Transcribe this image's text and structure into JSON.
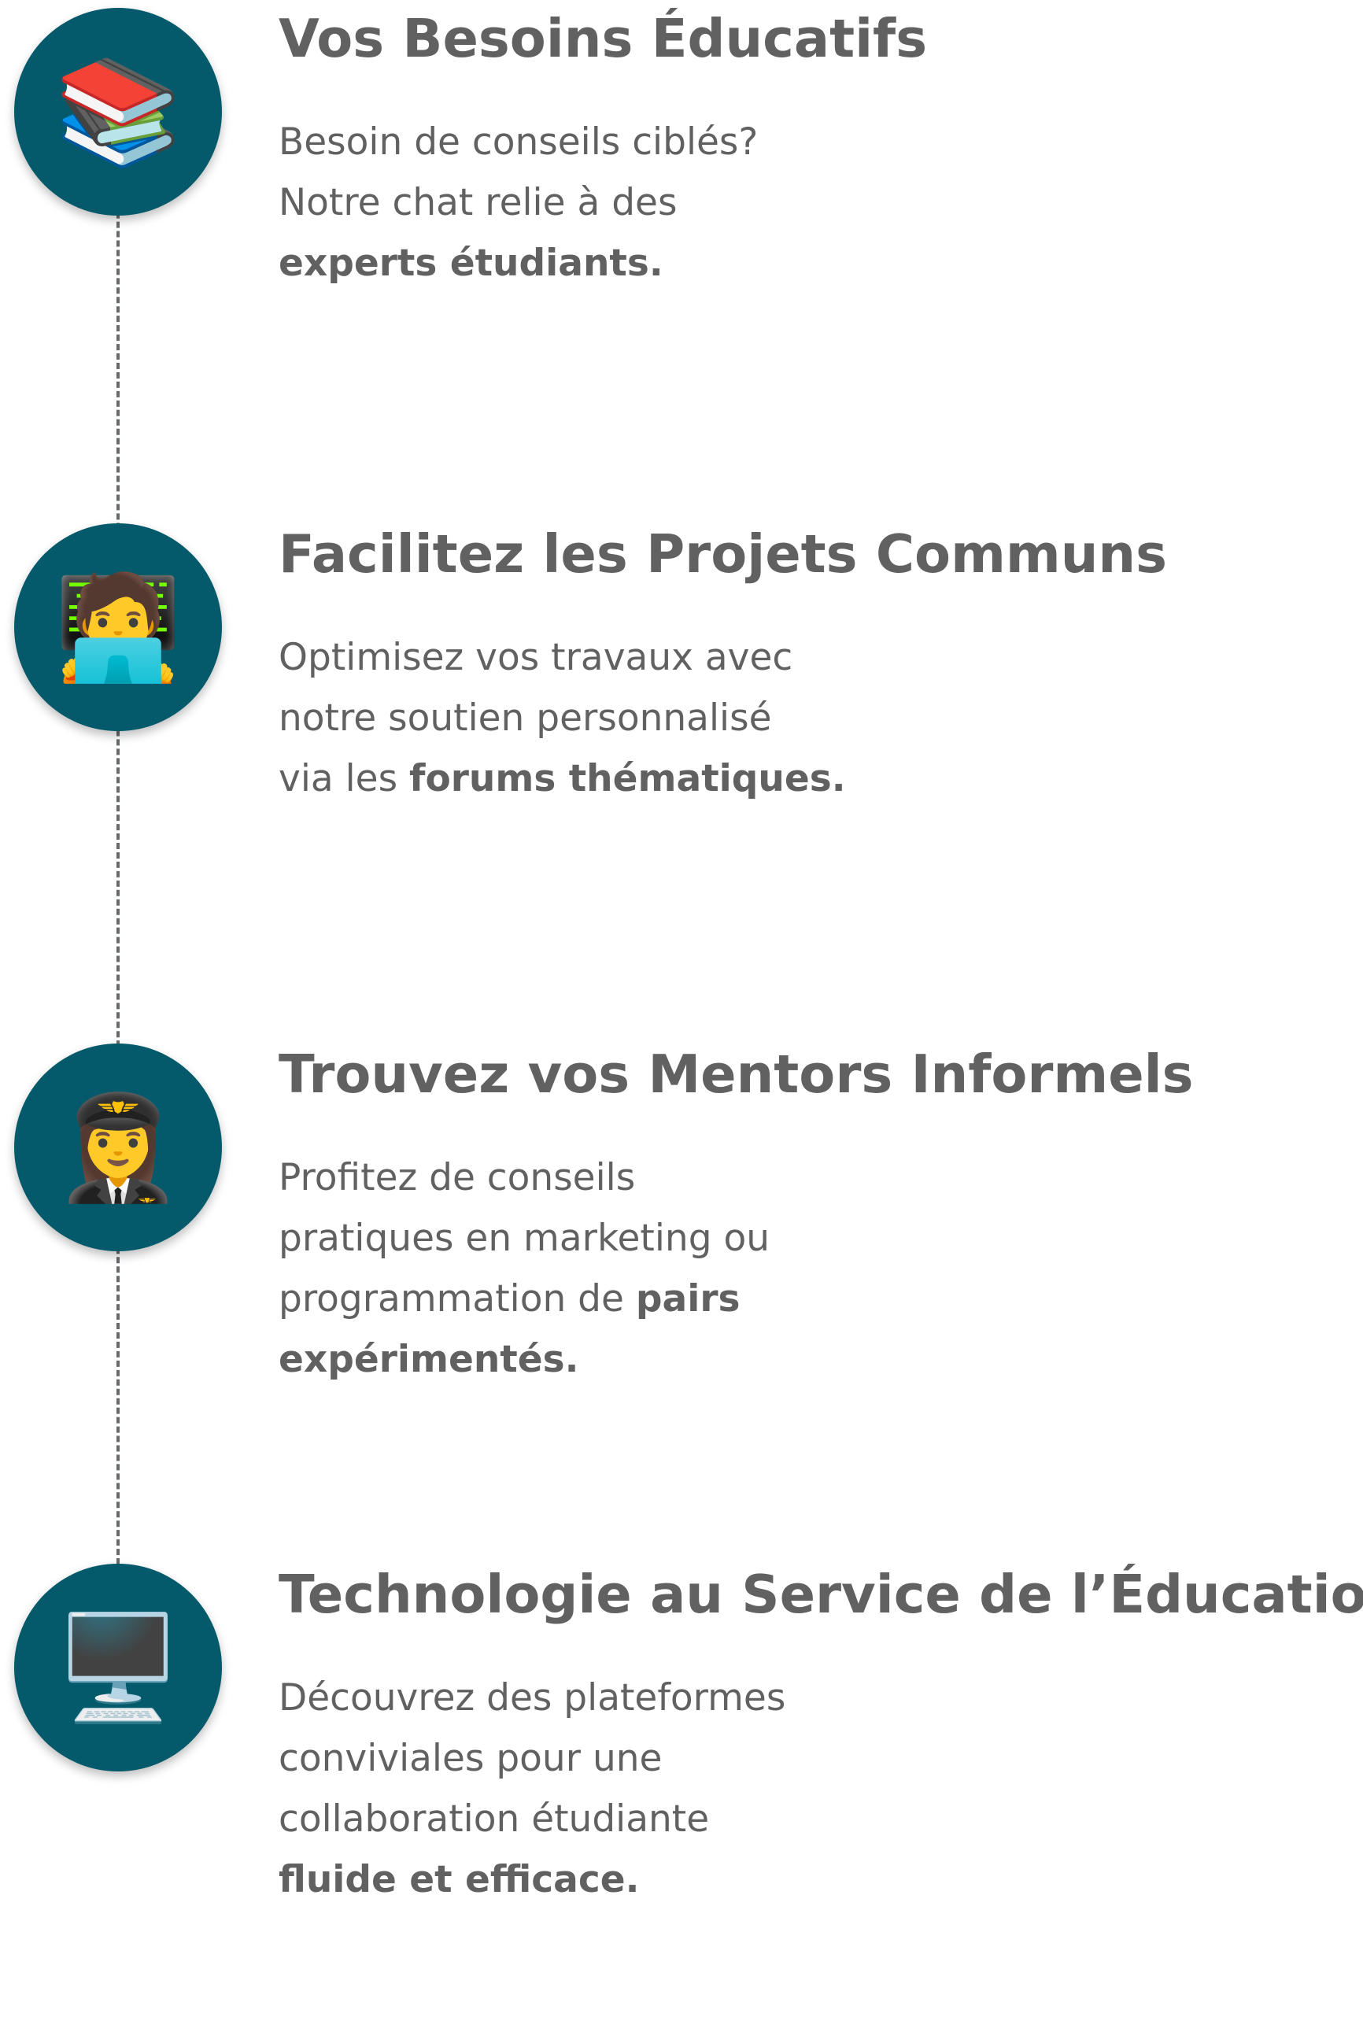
{
  "steps": [
    {
      "icon": "books-emoji-icon",
      "emoji": "📚",
      "title": "Vos Besoins Éducatifs",
      "lines": [
        {
          "text": "Besoin de conseils ciblés?",
          "bold": ""
        },
        {
          "text": "Notre chat relie à des",
          "bold": ""
        },
        {
          "text": "",
          "bold": "experts étudiants."
        }
      ]
    },
    {
      "icon": "technologist-emoji-icon",
      "emoji": "🧑‍💻",
      "title": "Facilitez les Projets Communs",
      "lines": [
        {
          "text": "Optimisez vos travaux avec",
          "bold": ""
        },
        {
          "text": "notre soutien personnalisé",
          "bold": ""
        },
        {
          "text": "via les ",
          "bold": "forums thématiques."
        }
      ]
    },
    {
      "icon": "pilot-emoji-icon",
      "emoji": "👩‍✈️",
      "title": "Trouvez vos Mentors Informels",
      "lines": [
        {
          "text": "Profitez de conseils",
          "bold": ""
        },
        {
          "text": "pratiques en marketing ou",
          "bold": ""
        },
        {
          "text": "programmation de ",
          "bold": "pairs"
        },
        {
          "text": "",
          "bold": "expérimentés."
        }
      ]
    },
    {
      "icon": "desktop-computer-emoji-icon",
      "emoji": "🖥️",
      "title": "Technologie au Service de l’Éducation",
      "lines": [
        {
          "text": "Découvrez des plateformes",
          "bold": ""
        },
        {
          "text": "conviviales pour une",
          "bold": ""
        },
        {
          "text": "collaboration étudiante",
          "bold": ""
        },
        {
          "text": "",
          "bold": "fluide et efficace."
        }
      ]
    }
  ],
  "colors": {
    "circle": "#045a6b",
    "text": "#616161",
    "line": "#666a6c"
  }
}
